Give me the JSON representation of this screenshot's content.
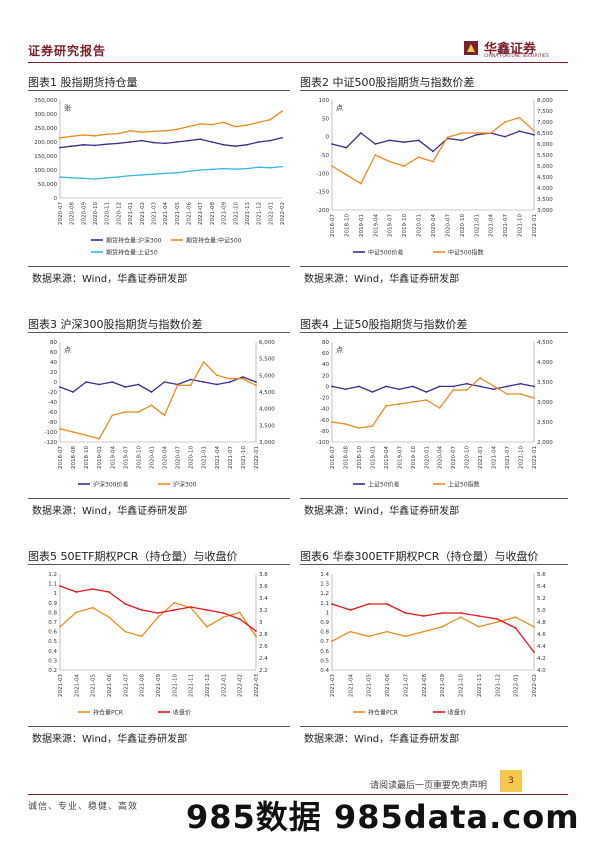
{
  "header": {
    "report_type": "证券研究报告",
    "brand": "华鑫证券",
    "brand_en": "CHINA FORTUNE SECURITIES"
  },
  "footer": {
    "note": "请阅读最后一页重要免责声明",
    "page_number": "3",
    "slogan": "诚信、专业、稳健、高效"
  },
  "watermark": "985数据 985data.com",
  "colors": {
    "brand": "#7a1f2b",
    "orange": "#ee8a1e",
    "purple": "#3d2c8f",
    "cyan": "#3ab8e0",
    "red": "#e8141b"
  },
  "panels": [
    {
      "title": "图表1 股指期货持仓量",
      "source": "数据来源：Wind，华鑫证券研发部"
    },
    {
      "title": "图表2 中证500股指期货与指数价差",
      "source": "数据来源：Wind，华鑫证券研发部"
    },
    {
      "title": "图表3 沪深300股指期货与指数价差",
      "source": "数据来源：Wind，华鑫证券研发部"
    },
    {
      "title": "图表4 上证50股指期货与指数价差",
      "source": "数据来源：Wind，华鑫证券研发部"
    },
    {
      "title": "图表5 50ETF期权PCR（持仓量）与收盘价",
      "source": "数据来源：Wind，华鑫证券研发部"
    },
    {
      "title": "图表6 华泰300ETF期权PCR（持仓量）与收盘价",
      "source": "数据来源：Wind，华鑫证券研发部"
    }
  ],
  "chart_data": [
    {
      "type": "line",
      "ylabel_left": "张",
      "ylim": [
        0,
        350000
      ],
      "yticks": [
        "0",
        "50,000",
        "100,000",
        "150,000",
        "200,000",
        "250,000",
        "300,000",
        "350,000"
      ],
      "x": [
        "2020-07",
        "2020-08",
        "2020-09",
        "2020-10",
        "2020-11",
        "2020-12",
        "2021-01",
        "2021-02",
        "2021-03",
        "2021-04",
        "2021-05",
        "2021-06",
        "2021-07",
        "2021-08",
        "2021-09",
        "2021-10",
        "2021-11",
        "2021-12",
        "2022-01",
        "2022-02"
      ],
      "legend_position": "bottom",
      "series": [
        {
          "name": "期货持仓量:沪深300",
          "color": "#3d2c8f",
          "axis": "left",
          "values": [
            180000,
            185000,
            190000,
            188000,
            192000,
            195000,
            200000,
            205000,
            198000,
            195000,
            200000,
            205000,
            210000,
            200000,
            190000,
            185000,
            190000,
            200000,
            205000,
            215000
          ]
        },
        {
          "name": "期货持仓量:中证500",
          "color": "#ee8a1e",
          "axis": "left",
          "values": [
            215000,
            220000,
            225000,
            222000,
            228000,
            230000,
            240000,
            235000,
            238000,
            240000,
            245000,
            255000,
            265000,
            262000,
            270000,
            255000,
            260000,
            270000,
            280000,
            310000
          ]
        },
        {
          "name": "期货持仓量:上证50",
          "color": "#3ab8e0",
          "axis": "left",
          "values": [
            75000,
            72000,
            70000,
            68000,
            72000,
            75000,
            80000,
            82000,
            85000,
            88000,
            90000,
            95000,
            100000,
            102000,
            105000,
            103000,
            105000,
            110000,
            108000,
            112000
          ]
        }
      ]
    },
    {
      "type": "line",
      "ylim": [
        -200,
        100
      ],
      "yticks_left": [
        "-200",
        "-150",
        "-100",
        "-50",
        "0",
        "50",
        "100"
      ],
      "ylim_right": [
        3000,
        8000
      ],
      "yticks_right": [
        "3,000",
        "3,500",
        "4,000",
        "4,500",
        "5,000",
        "5,500",
        "6,000",
        "6,500",
        "7,000",
        "7,500",
        "8,000"
      ],
      "ylabel_left": "点",
      "x": [
        "2018-07",
        "2018-10",
        "2019-01",
        "2019-04",
        "2019-07",
        "2019-10",
        "2020-01",
        "2020-04",
        "2020-07",
        "2020-10",
        "2021-01",
        "2021-04",
        "2021-07",
        "2021-10",
        "2022-01"
      ],
      "legend_position": "bottom",
      "series": [
        {
          "name": "中证500价差",
          "color": "#3d2c8f",
          "axis": "left",
          "values": [
            -20,
            -30,
            10,
            -20,
            -10,
            -15,
            -10,
            -40,
            -5,
            -10,
            5,
            10,
            0,
            15,
            5
          ]
        },
        {
          "name": "中证500指数",
          "color": "#ee8a1e",
          "axis": "right",
          "values": [
            5000,
            4600,
            4200,
            5500,
            5200,
            5000,
            5400,
            5200,
            6300,
            6500,
            6500,
            6500,
            7000,
            7200,
            6600
          ]
        }
      ]
    },
    {
      "type": "line",
      "ylim": [
        -120,
        80
      ],
      "yticks_left": [
        "-120",
        "-100",
        "-80",
        "-60",
        "-40",
        "-20",
        "0",
        "20",
        "40",
        "60",
        "80"
      ],
      "ylim_right": [
        3000,
        6000
      ],
      "yticks_right": [
        "3,000",
        "3,500",
        "4,000",
        "4,500",
        "5,000",
        "5,500",
        "6,000"
      ],
      "ylabel_left": "点",
      "x": [
        "2018-07",
        "2018-08",
        "2018-10",
        "2019-01",
        "2019-04",
        "2019-07",
        "2019-10",
        "2020-01",
        "2020-04",
        "2020-07",
        "2020-10",
        "2021-01",
        "2021-04",
        "2021-07",
        "2021-10",
        "2022-01"
      ],
      "legend_position": "bottom",
      "series": [
        {
          "name": "沪深300价差",
          "color": "#3d2c8f",
          "axis": "left",
          "values": [
            -10,
            -20,
            0,
            -5,
            0,
            -10,
            -5,
            -20,
            0,
            -5,
            5,
            0,
            -5,
            0,
            10,
            0
          ]
        },
        {
          "name": "沪深300",
          "color": "#ee8a1e",
          "axis": "right",
          "values": [
            3400,
            3300,
            3200,
            3100,
            3800,
            3900,
            3900,
            4100,
            3800,
            4700,
            4700,
            5400,
            5000,
            4900,
            4900,
            4700
          ]
        }
      ]
    },
    {
      "type": "line",
      "ylim": [
        -100,
        80
      ],
      "yticks_left": [
        "-100",
        "-80",
        "-60",
        "-40",
        "-20",
        "0",
        "20",
        "40",
        "60",
        "80"
      ],
      "ylim_right": [
        2000,
        4500
      ],
      "yticks_right": [
        "2,000",
        "2,500",
        "3,000",
        "3,500",
        "4,000",
        "4,500"
      ],
      "ylabel_left": "点",
      "x": [
        "2018-07",
        "2018-08",
        "2018-10",
        "2019-01",
        "2019-04",
        "2019-07",
        "2019-10",
        "2020-01",
        "2020-04",
        "2020-07",
        "2020-10",
        "2021-01",
        "2021-04",
        "2021-07",
        "2021-10",
        "2022-01"
      ],
      "legend_position": "bottom",
      "series": [
        {
          "name": "上证50价差",
          "color": "#3d2c8f",
          "axis": "left",
          "values": [
            0,
            -5,
            0,
            -10,
            0,
            -5,
            0,
            -10,
            0,
            0,
            5,
            0,
            -5,
            0,
            5,
            0
          ]
        },
        {
          "name": "上证50指数",
          "color": "#ee8a1e",
          "axis": "right",
          "values": [
            2500,
            2450,
            2350,
            2400,
            2900,
            2950,
            3000,
            3050,
            2850,
            3300,
            3300,
            3600,
            3400,
            3200,
            3200,
            3100
          ]
        }
      ]
    },
    {
      "type": "line",
      "ylim": [
        0.2,
        1.2
      ],
      "yticks_left": [
        "0.2",
        "0.3",
        "0.4",
        "0.5",
        "0.6",
        "0.7",
        "0.8",
        "0.9",
        "1",
        "1.1",
        "1.2"
      ],
      "ylim_right": [
        2.2,
        3.8
      ],
      "yticks_right": [
        "2.2",
        "2.4",
        "2.6",
        "2.8",
        "3",
        "3.2",
        "3.4",
        "3.6",
        "3.8"
      ],
      "x": [
        "2021-03",
        "2021-04",
        "2021-05",
        "2021-06",
        "2021-07",
        "2021-08",
        "2021-09",
        "2021-10",
        "2021-11",
        "2021-12",
        "2022-01",
        "2022-02",
        "2022-03"
      ],
      "legend_position": "bottom",
      "series": [
        {
          "name": "持仓量PCR",
          "color": "#ee8a1e",
          "axis": "left",
          "values": [
            0.65,
            0.8,
            0.85,
            0.75,
            0.6,
            0.55,
            0.75,
            0.9,
            0.85,
            0.65,
            0.75,
            0.8,
            0.55
          ]
        },
        {
          "name": "收盘价",
          "color": "#e8141b",
          "axis": "right",
          "values": [
            3.6,
            3.5,
            3.55,
            3.5,
            3.3,
            3.2,
            3.15,
            3.2,
            3.25,
            3.2,
            3.15,
            3.05,
            2.85
          ]
        }
      ]
    },
    {
      "type": "line",
      "ylim": [
        0.4,
        1.4
      ],
      "yticks_left": [
        "0.4",
        "0.5",
        "0.6",
        "0.7",
        "0.8",
        "0.9",
        "1",
        "1.1",
        "1.2",
        "1.3",
        "1.4"
      ],
      "ylim_right": [
        4.0,
        5.6
      ],
      "yticks_right": [
        "4.0",
        "4.2",
        "4.4",
        "4.6",
        "4.8",
        "5.0",
        "5.2",
        "5.4",
        "5.6"
      ],
      "x": [
        "2021-03",
        "2021-04",
        "2021-05",
        "2021-06",
        "2021-07",
        "2021-08",
        "2021-09",
        "2021-10",
        "2021-11",
        "2021-12",
        "2022-01",
        "2022-02"
      ],
      "legend_position": "bottom",
      "series": [
        {
          "name": "持仓量PCR",
          "color": "#ee8a1e",
          "axis": "left",
          "values": [
            0.7,
            0.8,
            0.75,
            0.8,
            0.75,
            0.8,
            0.85,
            0.95,
            0.85,
            0.9,
            0.95,
            0.85
          ]
        },
        {
          "name": "收盘价",
          "color": "#e8141b",
          "axis": "right",
          "values": [
            5.1,
            5.0,
            5.1,
            5.1,
            4.95,
            4.9,
            4.95,
            4.95,
            4.9,
            4.85,
            4.7,
            4.3
          ]
        }
      ]
    }
  ]
}
